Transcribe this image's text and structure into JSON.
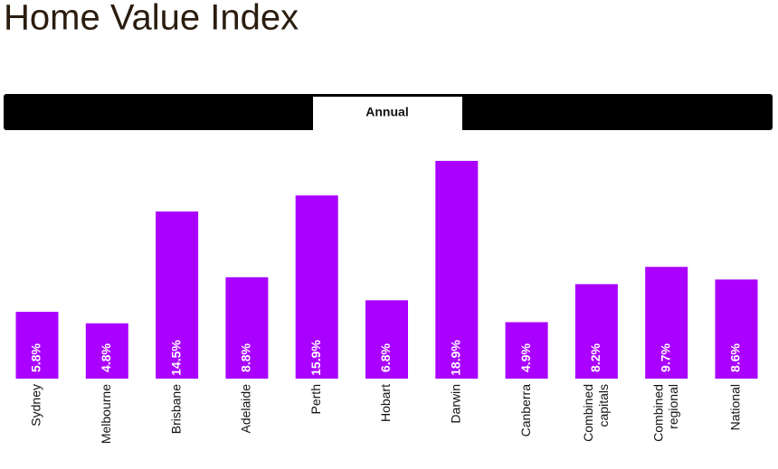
{
  "tab_label": "Annual",
  "chart_data": {
    "type": "bar",
    "title": "Home Value Index",
    "categories": [
      "Sydney",
      "Melbourne",
      "Brisbane",
      "Adelaide",
      "Perth",
      "Hobart",
      "Darwin",
      "Canberra",
      "Combined capitals",
      "Combined regional",
      "National"
    ],
    "values": [
      5.8,
      4.8,
      14.5,
      8.8,
      15.9,
      6.8,
      18.9,
      4.9,
      8.2,
      9.7,
      8.6
    ],
    "value_labels": [
      "5.8%",
      "4.8%",
      "14.5%",
      "8.8%",
      "15.9%",
      "6.8%",
      "18.9%",
      "4.9%",
      "8.2%",
      "9.7%",
      "8.6%"
    ],
    "color": "#aa00ff"
  }
}
